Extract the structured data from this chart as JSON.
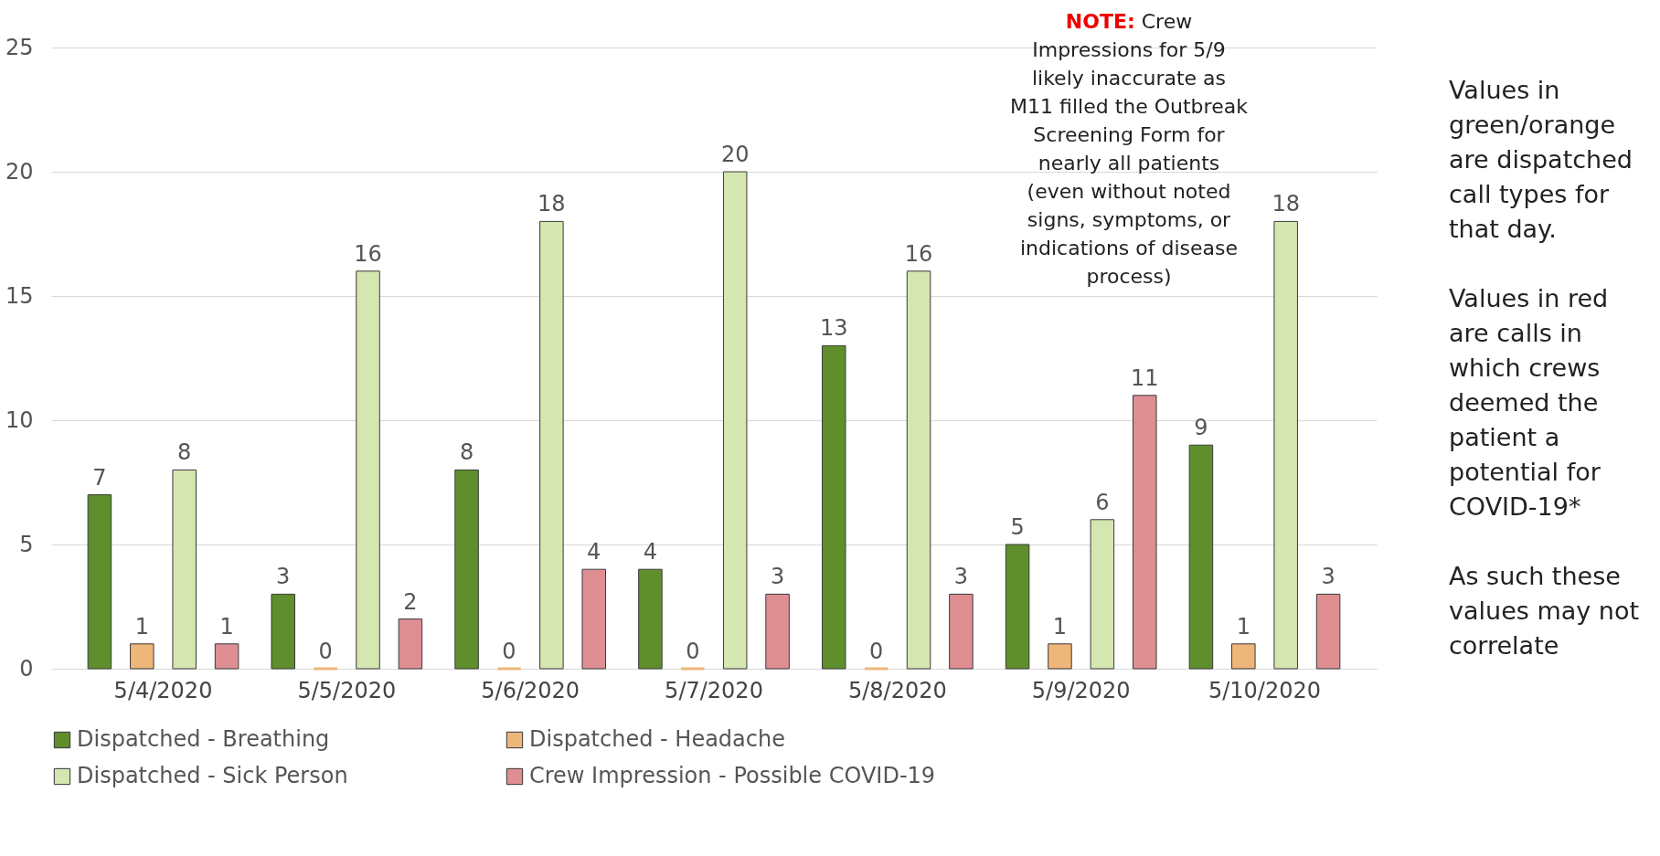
{
  "chart_data": {
    "type": "bar",
    "categories": [
      "5/4/2020",
      "5/5/2020",
      "5/6/2020",
      "5/7/2020",
      "5/8/2020",
      "5/9/2020",
      "5/10/2020"
    ],
    "series": [
      {
        "name": "Dispatched - Breathing",
        "color": "#5e8f2c",
        "values": [
          7,
          3,
          8,
          4,
          13,
          5,
          9
        ]
      },
      {
        "name": "Dispatched - Headache",
        "color": "#efb67a",
        "values": [
          1,
          0,
          0,
          0,
          0,
          1,
          1
        ]
      },
      {
        "name": "Dispatched - Sick Person",
        "color": "#d5e6b0",
        "values": [
          8,
          16,
          18,
          20,
          16,
          6,
          18
        ]
      },
      {
        "name": "Crew Impression - Possible COVID-19",
        "color": "#df8e92",
        "values": [
          1,
          2,
          4,
          3,
          3,
          11,
          3
        ]
      }
    ],
    "ylim": [
      0,
      25
    ],
    "yticks": [
      0,
      5,
      10,
      15,
      20,
      25
    ],
    "grid": "y",
    "legend": "bottom",
    "data_labels": true,
    "annotations": [
      "NOTE: Crew Impressions for 5/9 likely inaccurate as M11 filled the Outbreak Screening Form for nearly all patients (even without noted signs, symptoms, or indications of disease process)",
      "Values in green/orange are dispatched call types for that day.",
      "Values in red are calls in which crews deemed the patient a potential for COVID-19*",
      "As such these values may not correlate"
    ]
  }
}
